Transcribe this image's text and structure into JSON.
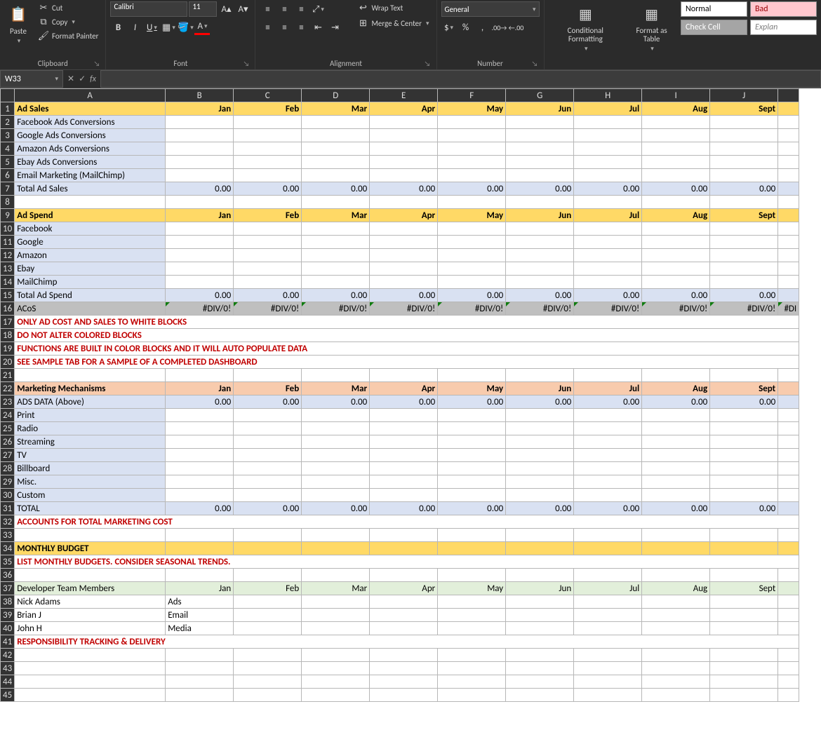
{
  "ribbon": {
    "clipboard": {
      "paste": "Paste",
      "cut": "Cut",
      "copy": "Copy",
      "format_painter": "Format Painter",
      "label": "Clipboard"
    },
    "font": {
      "name": "Calibri",
      "size": "11",
      "label": "Font"
    },
    "alignment": {
      "wrap": "Wrap Text",
      "merge": "Merge & Center",
      "label": "Alignment"
    },
    "number": {
      "format": "General",
      "label": "Number"
    },
    "styles": {
      "conditional": "Conditional Formatting",
      "table": "Format as Table",
      "normal": "Normal",
      "bad": "Bad",
      "check": "Check Cell",
      "explan": "Explan"
    }
  },
  "namebox": "W33",
  "columns": [
    "A",
    "B",
    "C",
    "D",
    "E",
    "F",
    "G",
    "H",
    "I",
    "J"
  ],
  "months": [
    "Jan",
    "Feb",
    "Mar",
    "Apr",
    "May",
    "Jun",
    "Jul",
    "Aug",
    "Sept"
  ],
  "rows": [
    {
      "n": 1,
      "fill": "yellow",
      "a": "Ad Sales",
      "months": true,
      "monthAlign": "right"
    },
    {
      "n": 2,
      "fill": "blue",
      "a": "Facebook Ads Conversions"
    },
    {
      "n": 3,
      "fill": "blue",
      "a": "Google Ads Conversions"
    },
    {
      "n": 4,
      "fill": "blue",
      "a": "Amazon Ads Conversions"
    },
    {
      "n": 5,
      "fill": "blue",
      "a": "Ebay Ads Conversions"
    },
    {
      "n": 6,
      "fill": "blue",
      "a": "Email Marketing (MailChimp)"
    },
    {
      "n": 7,
      "fill": "blue",
      "a": "Total Ad Sales",
      "vals": "0.00",
      "restFill": "blue"
    },
    {
      "n": 8,
      "a": ""
    },
    {
      "n": 9,
      "fill": "yellow",
      "a": "Ad Spend",
      "months": true,
      "monthAlign": "right"
    },
    {
      "n": 10,
      "fill": "blue",
      "a": "Facebook"
    },
    {
      "n": 11,
      "fill": "blue",
      "a": "Google"
    },
    {
      "n": 12,
      "fill": "blue",
      "a": "Amazon"
    },
    {
      "n": 13,
      "fill": "blue",
      "a": "Ebay"
    },
    {
      "n": 14,
      "fill": "blue",
      "a": "MailChimp"
    },
    {
      "n": 15,
      "fill": "blue",
      "a": "Total Ad Spend",
      "vals": "0.00",
      "restFill": "blue"
    },
    {
      "n": 16,
      "fill": "gray",
      "a": "ACoS",
      "vals": "#DIV/0!",
      "restFill": "gray",
      "err": true,
      "extra": "#DI"
    },
    {
      "n": 17,
      "txt": "red",
      "a": "ONLY AD COST AND SALES TO WHITE BLOCKS",
      "span": true
    },
    {
      "n": 18,
      "txt": "red",
      "a": "DO NOT ALTER COLORED BLOCKS",
      "span": true
    },
    {
      "n": 19,
      "txt": "red",
      "a": "FUNCTIONS ARE BUILT IN COLOR BLOCKS AND IT WILL AUTO POPULATE DATA",
      "span": true
    },
    {
      "n": 20,
      "txt": "red",
      "a": "SEE SAMPLE TAB FOR A SAMPLE OF A COMPLETED DASHBOARD",
      "span": true
    },
    {
      "n": 21,
      "a": ""
    },
    {
      "n": 22,
      "fill": "peach",
      "a": "Marketing Mechanisms",
      "months": true,
      "monthAlign": "right"
    },
    {
      "n": 23,
      "fill": "blue",
      "a": "ADS DATA (Above)",
      "vals": "0.00",
      "restFill": "blue"
    },
    {
      "n": 24,
      "fill": "blue",
      "a": "Print"
    },
    {
      "n": 25,
      "fill": "blue",
      "a": "Radio"
    },
    {
      "n": 26,
      "fill": "blue",
      "a": "Streaming"
    },
    {
      "n": 27,
      "fill": "blue",
      "a": "TV"
    },
    {
      "n": 28,
      "fill": "blue",
      "a": "Billboard"
    },
    {
      "n": 29,
      "fill": "blue",
      "a": "Misc."
    },
    {
      "n": 30,
      "fill": "blue",
      "a": "Custom"
    },
    {
      "n": 31,
      "fill": "blue",
      "a": "TOTAL",
      "vals": "0.00",
      "restFill": "blue"
    },
    {
      "n": 32,
      "txt": "red",
      "a": "ACCOUNTS FOR TOTAL MARKETING COST",
      "span": true
    },
    {
      "n": 33,
      "a": ""
    },
    {
      "n": 34,
      "fill": "yellow",
      "a": "MONTHLY BUDGET",
      "restFill": "yellow",
      "emptyVals": true
    },
    {
      "n": 35,
      "txt": "red",
      "a": "LIST MONTHLY BUDGETS. CONSIDER SEASONAL TRENDS.",
      "span": true
    },
    {
      "n": 36,
      "a": ""
    },
    {
      "n": 37,
      "fill": "green",
      "a": "Developer Team Members",
      "months": true,
      "monthAlign": "right"
    },
    {
      "n": 38,
      "a": "Nick Adams",
      "b": "Ads"
    },
    {
      "n": 39,
      "a": "Brian J",
      "b": "Email"
    },
    {
      "n": 40,
      "a": "John H",
      "b": "Media"
    },
    {
      "n": 41,
      "txt": "red",
      "a": "RESPONSIBILITY TRACKING & DELIVERY",
      "span": true
    },
    {
      "n": 42,
      "a": ""
    },
    {
      "n": 43,
      "a": ""
    },
    {
      "n": 44,
      "a": ""
    },
    {
      "n": 45,
      "a": ""
    }
  ],
  "colors": {
    "yellow": "#ffd966",
    "blue": "#d9e1f2",
    "peach": "#f8cbad",
    "gray": "#bfbfbf",
    "green": "#e2efda",
    "red_text": "#c00000"
  }
}
